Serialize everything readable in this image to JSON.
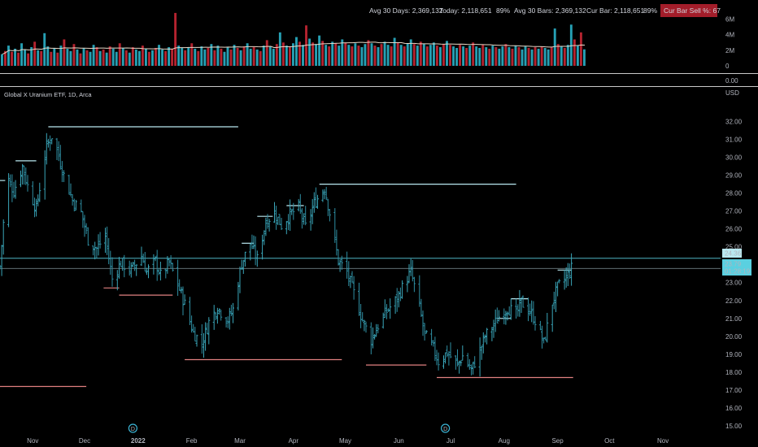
{
  "instrument": {
    "title": "Global X Uranium ETF, 1D, Arca",
    "currency": "USD"
  },
  "volume_panel": {
    "stats": [
      {
        "label": "Avg 30 Days: 2,369,132"
      },
      {
        "label": "Today: 2,118,651"
      },
      {
        "label": "89%"
      },
      {
        "label": "Avg 30 Bars: 2,369,132"
      },
      {
        "label": "Cur Bar: 2,118,651"
      },
      {
        "label": "89%"
      }
    ],
    "badge": "Cur Bar Sell %: 67",
    "ticks": [
      "6M",
      "4M",
      "2M",
      "0"
    ],
    "indicator_value": "0.00"
  },
  "price_labels": {
    "level": "24.36",
    "last": "23.79",
    "countdown": "01:28:19"
  },
  "event_markers": [
    "D",
    "D"
  ],
  "colors": {
    "up": "#26a0b4",
    "down": "#b4232f",
    "levels_high": "#b9e8f0",
    "levels_low": "#e08080",
    "avg_line": "#e8d8c8"
  },
  "chart_data": [
    {
      "type": "bar",
      "title": "Volume",
      "unit": "shares",
      "ylim": [
        0,
        7000000
      ],
      "ticks": [
        0,
        2000000,
        4000000,
        6000000
      ],
      "average_line": "30-bar average",
      "values": [
        1500000,
        1900000,
        2600000,
        1800000,
        2200000,
        1700000,
        2900000,
        2100000,
        1600000,
        2400000,
        3100000,
        2000000,
        1900000,
        4200000,
        2500000,
        1800000,
        2300000,
        1700000,
        2600000,
        3400000,
        2200000,
        1900000,
        2800000,
        2100000,
        1600000,
        2300000,
        2000000,
        1800000,
        2700000,
        2400000,
        1900000,
        2100000,
        1700000,
        2500000,
        2200000,
        1800000,
        2900000,
        2300000,
        2000000,
        1700000,
        2400000,
        2100000,
        1900000,
        2600000,
        2200000,
        1800000,
        2000000,
        2300000,
        2700000,
        2100000,
        1900000,
        2400000,
        2200000,
        6800000,
        2600000,
        2300000,
        2000000,
        2400000,
        2900000,
        2200000,
        1900000,
        2500000,
        2100000,
        2300000,
        2800000,
        2000000,
        2600000,
        2200000,
        1800000,
        2400000,
        2100000,
        2700000,
        2300000,
        2000000,
        2500000,
        2900000,
        2200000,
        2400000,
        2100000,
        1900000,
        2600000,
        3300000,
        2500000,
        2200000,
        2800000,
        4300000,
        3000000,
        2600000,
        2400000,
        2900000,
        3700000,
        3100000,
        2700000,
        5200000,
        3500000,
        3000000,
        2800000,
        3900000,
        3200000,
        2700000,
        2500000,
        3100000,
        2900000,
        2600000,
        3400000,
        3000000,
        2700000,
        2500000,
        2900000,
        2600000,
        2400000,
        2800000,
        3300000,
        2900000,
        2600000,
        2400000,
        2800000,
        3100000,
        2700000,
        2500000,
        3600000,
        3000000,
        2700000,
        2500000,
        2900000,
        3400000,
        2800000,
        2600000,
        3100000,
        2800000,
        2500000,
        2700000,
        3000000,
        2600000,
        2400000,
        2800000,
        3200000,
        2700000,
        2500000,
        2300000,
        2700000,
        2500000,
        2300000,
        2600000,
        3000000,
        2500000,
        2300000,
        2700000,
        2400000,
        2200000,
        2600000,
        2400000,
        2200000,
        2500000,
        2800000,
        2400000,
        2200000,
        2600000,
        2400000,
        2100000,
        2500000,
        2300000,
        2100000,
        2400000,
        2200000,
        2500000,
        2300000,
        2100000,
        2400000,
        4800000,
        2800000,
        2500000,
        2300000,
        2700000,
        5300000,
        3400000,
        2600000,
        4300000,
        2118651
      ],
      "colors": [
        "u",
        "d",
        "u",
        "d",
        "u",
        "d",
        "u",
        "u",
        "d",
        "u",
        "d",
        "u",
        "d",
        "u",
        "u",
        "d",
        "u",
        "d",
        "u",
        "d",
        "u",
        "u",
        "d",
        "u",
        "d",
        "u",
        "d",
        "u",
        "u",
        "d",
        "u",
        "d",
        "u",
        "d",
        "u",
        "u",
        "d",
        "u",
        "d",
        "u",
        "d",
        "u",
        "u",
        "d",
        "u",
        "d",
        "u",
        "d",
        "u",
        "u",
        "d",
        "u",
        "d",
        "d",
        "u",
        "u",
        "d",
        "u",
        "d",
        "u",
        "d",
        "u",
        "u",
        "d",
        "u",
        "d",
        "u",
        "d",
        "u",
        "u",
        "d",
        "u",
        "d",
        "u",
        "d",
        "u",
        "u",
        "d",
        "u",
        "d",
        "u",
        "d",
        "u",
        "u",
        "d",
        "u",
        "d",
        "u",
        "d",
        "u",
        "u",
        "d",
        "u",
        "d",
        "u",
        "d",
        "u",
        "u",
        "d",
        "u",
        "d",
        "u",
        "d",
        "u",
        "u",
        "d",
        "u",
        "d",
        "u",
        "d",
        "u",
        "u",
        "d",
        "u",
        "d",
        "u",
        "d",
        "u",
        "u",
        "d",
        "u",
        "d",
        "u",
        "d",
        "u",
        "u",
        "d",
        "u",
        "d",
        "u",
        "d",
        "u",
        "u",
        "d",
        "u",
        "d",
        "u",
        "d",
        "u",
        "u",
        "d",
        "u",
        "d",
        "u",
        "d",
        "u",
        "u",
        "d",
        "u",
        "d",
        "u",
        "d",
        "u",
        "u",
        "d",
        "u",
        "d",
        "u",
        "d",
        "u",
        "u",
        "d",
        "u",
        "d",
        "u",
        "d",
        "u",
        "u",
        "d",
        "u",
        "d",
        "u",
        "d",
        "u",
        "u",
        "d",
        "u",
        "d",
        "u",
        "d",
        "u",
        "u",
        "d",
        "u",
        "d",
        "d"
      ]
    },
    {
      "type": "ohlc",
      "title": "Global X Uranium ETF, 1D, Arca",
      "ylabel": "USD",
      "ylim": [
        14.5,
        33.2
      ],
      "yticks": [
        15,
        16,
        17,
        18,
        19,
        20,
        21,
        22,
        23,
        24,
        25,
        26,
        27,
        28,
        29,
        30,
        31,
        32
      ],
      "x_range": {
        "start": "2021-10-13",
        "end": "2022-11-25"
      },
      "x_ticks": [
        {
          "label": "Nov",
          "date": "2021-11-01"
        },
        {
          "label": "Dec",
          "date": "2021-12-01"
        },
        {
          "label": "2022",
          "date": "2022-01-01"
        },
        {
          "label": "Feb",
          "date": "2022-02-01"
        },
        {
          "label": "Mar",
          "date": "2022-03-01"
        },
        {
          "label": "Apr",
          "date": "2022-04-01"
        },
        {
          "label": "May",
          "date": "2022-05-01"
        },
        {
          "label": "Jun",
          "date": "2022-06-01"
        },
        {
          "label": "Jul",
          "date": "2022-07-01"
        },
        {
          "label": "Aug",
          "date": "2022-08-01"
        },
        {
          "label": "Sep",
          "date": "2022-09-01"
        },
        {
          "label": "Oct",
          "date": "2022-10-01"
        },
        {
          "label": "Nov",
          "date": "2022-11-01"
        }
      ],
      "series": [
        {
          "values": [
            {
              "date": "2021-10-13",
              "close": 23.9
            },
            {
              "date": "2021-10-15",
              "close": 26.3
            },
            {
              "date": "2021-10-18",
              "close": 28.7
            },
            {
              "date": "2021-10-21",
              "close": 28.1
            },
            {
              "date": "2021-10-26",
              "close": 29.5
            },
            {
              "date": "2021-10-29",
              "close": 28.4
            },
            {
              "date": "2021-11-03",
              "close": 27.1
            },
            {
              "date": "2021-11-06",
              "close": 28.9
            },
            {
              "date": "2021-11-09",
              "close": 30.6
            },
            {
              "date": "2021-11-12",
              "close": 31.2
            },
            {
              "date": "2021-11-16",
              "close": 30.1
            },
            {
              "date": "2021-11-19",
              "close": 29.0
            },
            {
              "date": "2021-11-24",
              "close": 27.6
            },
            {
              "date": "2021-11-29",
              "close": 26.9
            },
            {
              "date": "2021-12-03",
              "close": 25.4
            },
            {
              "date": "2021-12-08",
              "close": 24.9
            },
            {
              "date": "2021-12-13",
              "close": 25.6
            },
            {
              "date": "2021-12-17",
              "close": 23.2
            },
            {
              "date": "2021-12-22",
              "close": 24.1
            },
            {
              "date": "2021-12-28",
              "close": 23.7
            },
            {
              "date": "2022-01-03",
              "close": 24.5
            },
            {
              "date": "2022-01-06",
              "close": 23.6
            },
            {
              "date": "2022-01-11",
              "close": 24.2
            },
            {
              "date": "2022-01-14",
              "close": 23.4
            },
            {
              "date": "2022-01-19",
              "close": 24.1
            },
            {
              "date": "2022-01-24",
              "close": 22.9
            },
            {
              "date": "2022-01-28",
              "close": 21.8
            },
            {
              "date": "2022-02-02",
              "close": 20.2
            },
            {
              "date": "2022-02-07",
              "close": 19.6
            },
            {
              "date": "2022-02-11",
              "close": 20.8
            },
            {
              "date": "2022-02-16",
              "close": 21.6
            },
            {
              "date": "2022-02-22",
              "close": 20.9
            },
            {
              "date": "2022-02-25",
              "close": 21.5
            },
            {
              "date": "2022-03-02",
              "close": 24.1
            },
            {
              "date": "2022-03-07",
              "close": 25.2
            },
            {
              "date": "2022-03-11",
              "close": 24.3
            },
            {
              "date": "2022-03-16",
              "close": 26.4
            },
            {
              "date": "2022-03-21",
              "close": 26.9
            },
            {
              "date": "2022-03-25",
              "close": 26.2
            },
            {
              "date": "2022-03-30",
              "close": 26.8
            },
            {
              "date": "2022-04-04",
              "close": 27.2
            },
            {
              "date": "2022-04-08",
              "close": 26.1
            },
            {
              "date": "2022-04-13",
              "close": 27.4
            },
            {
              "date": "2022-04-19",
              "close": 28.3
            },
            {
              "date": "2022-04-22",
              "close": 26.9
            },
            {
              "date": "2022-04-27",
              "close": 24.2
            },
            {
              "date": "2022-05-02",
              "close": 23.6
            },
            {
              "date": "2022-05-06",
              "close": 22.4
            },
            {
              "date": "2022-05-11",
              "close": 20.9
            },
            {
              "date": "2022-05-16",
              "close": 19.8
            },
            {
              "date": "2022-05-20",
              "close": 20.6
            },
            {
              "date": "2022-05-25",
              "close": 21.4
            },
            {
              "date": "2022-05-31",
              "close": 22.1
            },
            {
              "date": "2022-06-03",
              "close": 22.7
            },
            {
              "date": "2022-06-08",
              "close": 23.6
            },
            {
              "date": "2022-06-13",
              "close": 21.6
            },
            {
              "date": "2022-06-16",
              "close": 20.1
            },
            {
              "date": "2022-06-21",
              "close": 19.3
            },
            {
              "date": "2022-06-24",
              "close": 18.6
            },
            {
              "date": "2022-06-29",
              "close": 19.1
            },
            {
              "date": "2022-07-05",
              "close": 18.4
            },
            {
              "date": "2022-07-08",
              "close": 18.9
            },
            {
              "date": "2022-07-13",
              "close": 18.1
            },
            {
              "date": "2022-07-18",
              "close": 19.2
            },
            {
              "date": "2022-07-21",
              "close": 20.0
            },
            {
              "date": "2022-07-26",
              "close": 20.6
            },
            {
              "date": "2022-07-29",
              "close": 21.1
            },
            {
              "date": "2022-08-03",
              "close": 21.6
            },
            {
              "date": "2022-08-08",
              "close": 21.2
            },
            {
              "date": "2022-08-11",
              "close": 21.9
            },
            {
              "date": "2022-08-16",
              "close": 21.4
            },
            {
              "date": "2022-08-19",
              "close": 20.9
            },
            {
              "date": "2022-08-24",
              "close": 19.6
            },
            {
              "date": "2022-08-29",
              "close": 21.9
            },
            {
              "date": "2022-09-01",
              "close": 22.7
            },
            {
              "date": "2022-09-06",
              "close": 23.3
            },
            {
              "date": "2022-09-09",
              "close": 23.79
            }
          ]
        }
      ],
      "levels": [
        {
          "kind": "resistance",
          "price": 31.7,
          "start": "2021-11-10",
          "end": "2022-02-28"
        },
        {
          "kind": "resistance",
          "price": 28.5,
          "start": "2022-04-16",
          "end": "2022-08-08"
        },
        {
          "kind": "support",
          "price": 18.7,
          "start": "2022-01-28",
          "end": "2022-04-29"
        },
        {
          "kind": "support",
          "price": 17.7,
          "start": "2022-06-23",
          "end": "2022-09-10"
        },
        {
          "kind": "support",
          "price": 17.2,
          "start": "2021-10-13",
          "end": "2021-12-02"
        },
        {
          "kind": "resistance",
          "price": 28.7,
          "start": "2021-10-13",
          "end": "2021-10-16"
        },
        {
          "kind": "resistance",
          "price": 29.8,
          "start": "2021-10-22",
          "end": "2021-11-03"
        },
        {
          "kind": "support",
          "price": 22.7,
          "start": "2021-12-12",
          "end": "2021-12-21"
        },
        {
          "kind": "support",
          "price": 22.3,
          "start": "2021-12-21",
          "end": "2022-01-21"
        },
        {
          "kind": "resistance",
          "price": 25.2,
          "start": "2022-03-02",
          "end": "2022-03-09"
        },
        {
          "kind": "resistance",
          "price": 26.7,
          "start": "2022-03-11",
          "end": "2022-03-20"
        },
        {
          "kind": "resistance",
          "price": 27.3,
          "start": "2022-03-28",
          "end": "2022-04-07"
        },
        {
          "kind": "support",
          "price": 18.4,
          "start": "2022-05-13",
          "end": "2022-06-17"
        },
        {
          "kind": "resistance",
          "price": 21.0,
          "start": "2022-07-28",
          "end": "2022-08-05"
        },
        {
          "kind": "resistance",
          "price": 22.1,
          "start": "2022-08-05",
          "end": "2022-08-15"
        },
        {
          "kind": "resistance",
          "price": 23.7,
          "start": "2022-09-01",
          "end": "2022-09-09"
        }
      ],
      "horizontal_lines": [
        24.36,
        23.79
      ],
      "event_dates": [
        "2021-12-29",
        "2022-06-28"
      ]
    }
  ]
}
